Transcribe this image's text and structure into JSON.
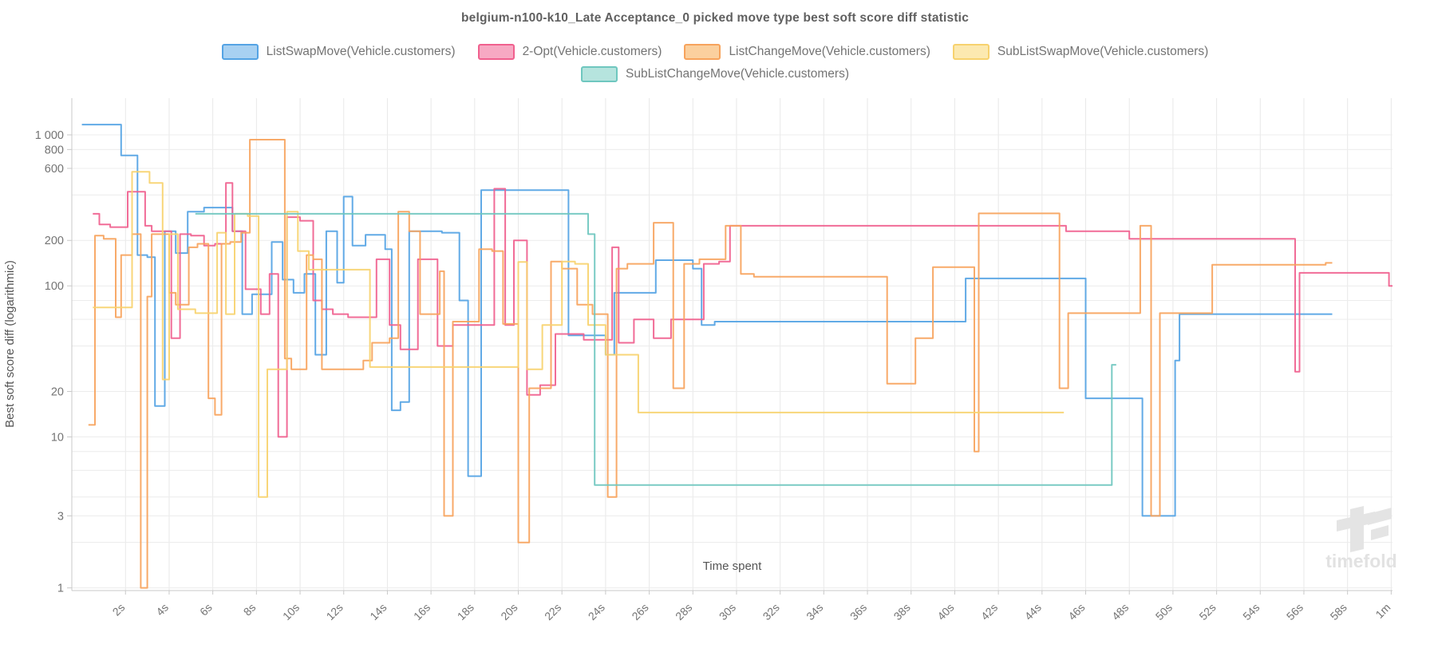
{
  "title": "belgium-n100-k10_Late Acceptance_0 picked move type best soft score diff statistic",
  "watermark_text": "timefold",
  "chart_data": {
    "type": "line",
    "step": "after",
    "title": "belgium-n100-k10_Late Acceptance_0 picked move type best soft score diff statistic",
    "xlabel": "Time spent",
    "ylabel": "Best soft score diff (logarithmic)",
    "grid": true,
    "legend_position": "top",
    "legend_rows": [
      4,
      1
    ],
    "xlim": [
      -0.46,
      60.06
    ],
    "ylim_log": [
      0.96,
      1750
    ],
    "x_ticks": [
      {
        "t": 2,
        "label": "2s"
      },
      {
        "t": 4,
        "label": "4s"
      },
      {
        "t": 6,
        "label": "6s"
      },
      {
        "t": 8,
        "label": "8s"
      },
      {
        "t": 10,
        "label": "10s"
      },
      {
        "t": 12,
        "label": "12s"
      },
      {
        "t": 14,
        "label": "14s"
      },
      {
        "t": 16,
        "label": "16s"
      },
      {
        "t": 18,
        "label": "18s"
      },
      {
        "t": 20,
        "label": "20s"
      },
      {
        "t": 22,
        "label": "22s"
      },
      {
        "t": 24,
        "label": "24s"
      },
      {
        "t": 26,
        "label": "26s"
      },
      {
        "t": 28,
        "label": "28s"
      },
      {
        "t": 30,
        "label": "30s"
      },
      {
        "t": 32,
        "label": "32s"
      },
      {
        "t": 34,
        "label": "34s"
      },
      {
        "t": 36,
        "label": "36s"
      },
      {
        "t": 38,
        "label": "38s"
      },
      {
        "t": 40,
        "label": "40s"
      },
      {
        "t": 42,
        "label": "42s"
      },
      {
        "t": 44,
        "label": "44s"
      },
      {
        "t": 46,
        "label": "46s"
      },
      {
        "t": 48,
        "label": "48s"
      },
      {
        "t": 50,
        "label": "50s"
      },
      {
        "t": 52,
        "label": "52s"
      },
      {
        "t": 54,
        "label": "54s"
      },
      {
        "t": 56,
        "label": "56s"
      },
      {
        "t": 58,
        "label": "58s"
      },
      {
        "t": 60,
        "label": "1m"
      }
    ],
    "y_ticks": [
      {
        "v": 1,
        "label": "1"
      },
      {
        "v": 3,
        "label": "3"
      },
      {
        "v": 10,
        "label": "10"
      },
      {
        "v": 20,
        "label": "20"
      },
      {
        "v": 100,
        "label": "100"
      },
      {
        "v": 200,
        "label": "200"
      },
      {
        "v": 600,
        "label": "600"
      },
      {
        "v": 800,
        "label": "800"
      },
      {
        "v": 1000,
        "label": "1 000"
      }
    ],
    "y_grid": [
      1,
      2,
      3,
      4,
      6,
      8,
      10,
      20,
      40,
      60,
      80,
      100,
      200,
      400,
      600,
      800,
      1000
    ],
    "series": [
      {
        "name": "ListSwapMove(Vehicle.customers)",
        "color": "#54a3e4",
        "legend_fill": "#a8d1f2",
        "end": 57.3,
        "points": [
          [
            0.0,
            1170
          ],
          [
            1.8,
            730
          ],
          [
            2.55,
            160
          ],
          [
            3.0,
            155
          ],
          [
            3.35,
            16
          ],
          [
            3.8,
            230
          ],
          [
            4.3,
            165
          ],
          [
            4.85,
            310
          ],
          [
            5.6,
            330
          ],
          [
            6.9,
            230
          ],
          [
            7.35,
            65
          ],
          [
            7.8,
            88
          ],
          [
            8.7,
            195
          ],
          [
            9.2,
            110
          ],
          [
            9.7,
            90
          ],
          [
            10.2,
            120
          ],
          [
            10.7,
            35
          ],
          [
            11.2,
            230
          ],
          [
            11.7,
            105
          ],
          [
            12.0,
            390
          ],
          [
            12.4,
            185
          ],
          [
            13.0,
            218
          ],
          [
            13.9,
            175
          ],
          [
            14.2,
            15
          ],
          [
            14.6,
            17
          ],
          [
            15.0,
            230
          ],
          [
            16.5,
            225
          ],
          [
            17.3,
            80
          ],
          [
            17.7,
            5.5
          ],
          [
            18.3,
            430
          ],
          [
            22.3,
            47
          ],
          [
            24.0,
            35
          ],
          [
            24.4,
            90
          ],
          [
            26.3,
            148
          ],
          [
            28.0,
            130
          ],
          [
            28.4,
            55
          ],
          [
            29.0,
            58
          ],
          [
            40.5,
            112
          ],
          [
            46.0,
            18
          ],
          [
            48.6,
            3
          ],
          [
            50.1,
            32
          ],
          [
            50.3,
            65
          ]
        ]
      },
      {
        "name": "2-Opt(Vehicle.customers)",
        "color": "#f0608e",
        "legend_fill": "#f7a9c3",
        "end": 60.1,
        "points": [
          [
            0.5,
            300
          ],
          [
            0.8,
            255
          ],
          [
            1.3,
            245
          ],
          [
            2.1,
            420
          ],
          [
            2.9,
            250
          ],
          [
            3.2,
            230
          ],
          [
            4.1,
            45
          ],
          [
            4.5,
            220
          ],
          [
            5.0,
            215
          ],
          [
            5.6,
            185
          ],
          [
            6.1,
            190
          ],
          [
            6.6,
            480
          ],
          [
            6.9,
            230
          ],
          [
            7.5,
            95
          ],
          [
            8.2,
            65
          ],
          [
            8.6,
            120
          ],
          [
            9.0,
            10
          ],
          [
            9.4,
            285
          ],
          [
            10.0,
            270
          ],
          [
            10.6,
            80
          ],
          [
            11.0,
            70
          ],
          [
            11.5,
            65
          ],
          [
            12.2,
            62
          ],
          [
            13.5,
            150
          ],
          [
            14.1,
            55
          ],
          [
            14.6,
            38
          ],
          [
            15.4,
            150
          ],
          [
            16.3,
            40
          ],
          [
            17.0,
            55
          ],
          [
            18.9,
            440
          ],
          [
            19.4,
            55
          ],
          [
            19.8,
            200
          ],
          [
            20.4,
            19
          ],
          [
            21.0,
            22
          ],
          [
            21.7,
            48
          ],
          [
            23.0,
            44
          ],
          [
            24.3,
            180
          ],
          [
            24.6,
            42
          ],
          [
            25.3,
            60
          ],
          [
            26.2,
            45
          ],
          [
            27.0,
            60
          ],
          [
            28.5,
            140
          ],
          [
            29.2,
            145
          ],
          [
            29.7,
            250
          ],
          [
            45.1,
            230
          ],
          [
            48.0,
            205
          ],
          [
            55.6,
            27
          ],
          [
            55.8,
            122
          ],
          [
            59.9,
            100
          ]
        ]
      },
      {
        "name": "ListChangeMove(Vehicle.customers)",
        "color": "#f7a35c",
        "legend_fill": "#fbd09e",
        "end": 57.3,
        "points": [
          [
            0.3,
            12
          ],
          [
            0.6,
            215
          ],
          [
            1.0,
            205
          ],
          [
            1.55,
            62
          ],
          [
            1.8,
            160
          ],
          [
            2.3,
            220
          ],
          [
            2.7,
            1
          ],
          [
            3.0,
            85
          ],
          [
            3.2,
            220
          ],
          [
            4.0,
            90
          ],
          [
            4.3,
            75
          ],
          [
            4.9,
            180
          ],
          [
            5.3,
            190
          ],
          [
            5.8,
            18
          ],
          [
            6.1,
            14
          ],
          [
            6.4,
            190
          ],
          [
            6.8,
            195
          ],
          [
            7.3,
            225
          ],
          [
            7.7,
            930
          ],
          [
            9.3,
            33
          ],
          [
            9.6,
            28
          ],
          [
            10.3,
            160
          ],
          [
            10.6,
            150
          ],
          [
            11.0,
            28
          ],
          [
            12.9,
            32
          ],
          [
            13.3,
            42
          ],
          [
            14.1,
            45
          ],
          [
            14.5,
            310
          ],
          [
            15.0,
            230
          ],
          [
            15.5,
            65
          ],
          [
            16.4,
            125
          ],
          [
            16.6,
            3
          ],
          [
            17.0,
            58
          ],
          [
            18.2,
            175
          ],
          [
            18.8,
            170
          ],
          [
            19.3,
            56
          ],
          [
            20.0,
            2
          ],
          [
            20.5,
            21
          ],
          [
            21.5,
            145
          ],
          [
            22.0,
            130
          ],
          [
            22.7,
            75
          ],
          [
            23.4,
            65
          ],
          [
            24.1,
            4
          ],
          [
            24.5,
            130
          ],
          [
            25.0,
            140
          ],
          [
            26.2,
            262
          ],
          [
            27.1,
            21
          ],
          [
            27.6,
            140
          ],
          [
            28.3,
            150
          ],
          [
            29.5,
            250
          ],
          [
            30.2,
            120
          ],
          [
            30.8,
            115
          ],
          [
            36.9,
            22.5
          ],
          [
            38.2,
            45
          ],
          [
            39.0,
            133
          ],
          [
            40.9,
            8
          ],
          [
            41.1,
            302
          ],
          [
            44.8,
            21
          ],
          [
            45.2,
            66
          ],
          [
            48.5,
            250
          ],
          [
            49.0,
            3
          ],
          [
            49.4,
            66
          ],
          [
            51.8,
            138
          ],
          [
            57.0,
            142
          ]
        ]
      },
      {
        "name": "SubListSwapMove(Vehicle.customers)",
        "color": "#f7d26e",
        "legend_fill": "#fce9b0",
        "end": 45.0,
        "points": [
          [
            0.5,
            72
          ],
          [
            2.3,
            570
          ],
          [
            3.1,
            480
          ],
          [
            3.7,
            24
          ],
          [
            4.0,
            220
          ],
          [
            4.4,
            70
          ],
          [
            5.2,
            66
          ],
          [
            6.2,
            225
          ],
          [
            6.6,
            65
          ],
          [
            7.0,
            300
          ],
          [
            7.6,
            290
          ],
          [
            8.1,
            4
          ],
          [
            8.5,
            28
          ],
          [
            9.4,
            310
          ],
          [
            9.9,
            170
          ],
          [
            10.4,
            128
          ],
          [
            13.2,
            29
          ],
          [
            20.0,
            144
          ],
          [
            20.4,
            28
          ],
          [
            21.1,
            55
          ],
          [
            22.0,
            145
          ],
          [
            22.6,
            140
          ],
          [
            23.2,
            55
          ],
          [
            24.0,
            35
          ],
          [
            25.5,
            14.5
          ]
        ]
      },
      {
        "name": "SubListChangeMove(Vehicle.customers)",
        "color": "#6fc7bf",
        "legend_fill": "#b6e4de",
        "end": 47.4,
        "points": [
          [
            5.2,
            300
          ],
          [
            23.2,
            220
          ],
          [
            23.5,
            4.8
          ],
          [
            47.2,
            30
          ]
        ]
      }
    ]
  }
}
